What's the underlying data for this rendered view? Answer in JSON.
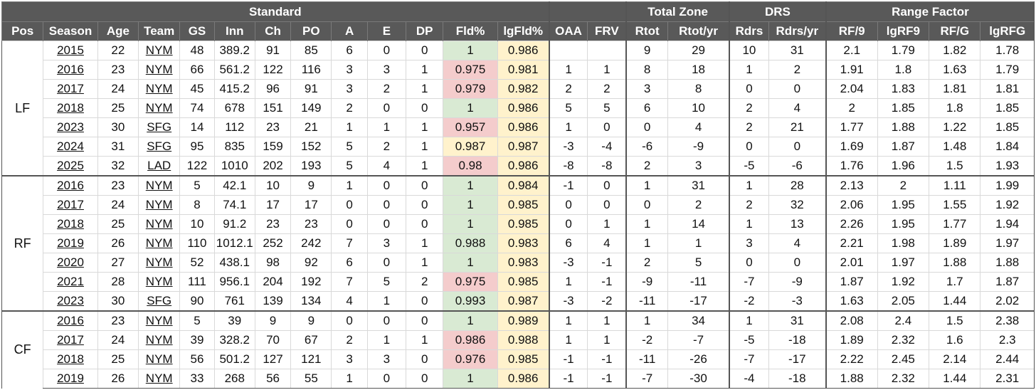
{
  "groups": {
    "standard": "Standard",
    "total_zone": "Total Zone",
    "drs": "DRS",
    "range_factor": "Range Factor"
  },
  "columns": [
    "Pos",
    "Season",
    "Age",
    "Team",
    "GS",
    "Inn",
    "Ch",
    "PO",
    "A",
    "E",
    "DP",
    "Fld%",
    "lgFld%",
    "OAA",
    "FRV",
    "Rtot",
    "Rtot/yr",
    "Rdrs",
    "Rdrs/yr",
    "RF/9",
    "lgRF9",
    "RF/G",
    "lgRFG"
  ],
  "colors": {
    "header_bg": "#595959",
    "good": "#d9ead3",
    "mid": "#fff2cc",
    "bad": "#f4cccc",
    "league": "#fff2cc"
  },
  "sections": [
    {
      "pos": "LF",
      "rows": [
        {
          "season": "2015",
          "age": "22",
          "team": "NYM",
          "gs": "48",
          "inn": "389.2",
          "ch": "91",
          "po": "85",
          "a": "6",
          "e": "0",
          "dp": "0",
          "fld": "1",
          "fld_color": "good",
          "lgfld": "0.986",
          "oaa": "",
          "frv": "",
          "rtot": "9",
          "rtot_yr": "29",
          "rdrs": "10",
          "rdrs_yr": "31",
          "rf9": "2.1",
          "lgrf9": "1.79",
          "rfg": "1.82",
          "lgrfg": "1.78"
        },
        {
          "season": "2016",
          "age": "23",
          "team": "NYM",
          "gs": "66",
          "inn": "561.2",
          "ch": "122",
          "po": "116",
          "a": "3",
          "e": "3",
          "dp": "1",
          "fld": "0.975",
          "fld_color": "bad",
          "lgfld": "0.981",
          "oaa": "1",
          "frv": "1",
          "rtot": "8",
          "rtot_yr": "18",
          "rdrs": "1",
          "rdrs_yr": "2",
          "rf9": "1.91",
          "lgrf9": "1.8",
          "rfg": "1.63",
          "lgrfg": "1.79"
        },
        {
          "season": "2017",
          "age": "24",
          "team": "NYM",
          "gs": "45",
          "inn": "415.2",
          "ch": "96",
          "po": "91",
          "a": "3",
          "e": "2",
          "dp": "1",
          "fld": "0.979",
          "fld_color": "bad",
          "lgfld": "0.982",
          "oaa": "2",
          "frv": "2",
          "rtot": "3",
          "rtot_yr": "8",
          "rdrs": "0",
          "rdrs_yr": "0",
          "rf9": "2.04",
          "lgrf9": "1.83",
          "rfg": "1.81",
          "lgrfg": "1.81"
        },
        {
          "season": "2018",
          "age": "25",
          "team": "NYM",
          "gs": "74",
          "inn": "678",
          "ch": "151",
          "po": "149",
          "a": "2",
          "e": "0",
          "dp": "0",
          "fld": "1",
          "fld_color": "good",
          "lgfld": "0.986",
          "oaa": "5",
          "frv": "5",
          "rtot": "6",
          "rtot_yr": "10",
          "rdrs": "2",
          "rdrs_yr": "4",
          "rf9": "2",
          "lgrf9": "1.85",
          "rfg": "1.8",
          "lgrfg": "1.85"
        },
        {
          "season": "2023",
          "age": "30",
          "team": "SFG",
          "gs": "14",
          "inn": "112",
          "ch": "23",
          "po": "21",
          "a": "1",
          "e": "1",
          "dp": "1",
          "fld": "0.957",
          "fld_color": "bad",
          "lgfld": "0.986",
          "oaa": "1",
          "frv": "0",
          "rtot": "0",
          "rtot_yr": "4",
          "rdrs": "2",
          "rdrs_yr": "21",
          "rf9": "1.77",
          "lgrf9": "1.88",
          "rfg": "1.22",
          "lgrfg": "1.85"
        },
        {
          "season": "2024",
          "age": "31",
          "team": "SFG",
          "gs": "95",
          "inn": "835",
          "ch": "159",
          "po": "152",
          "a": "5",
          "e": "2",
          "dp": "1",
          "fld": "0.987",
          "fld_color": "mid",
          "lgfld": "0.987",
          "oaa": "-3",
          "frv": "-4",
          "rtot": "-6",
          "rtot_yr": "-9",
          "rdrs": "0",
          "rdrs_yr": "0",
          "rf9": "1.69",
          "lgrf9": "1.87",
          "rfg": "1.48",
          "lgrfg": "1.84"
        },
        {
          "season": "2025",
          "age": "32",
          "team": "LAD",
          "gs": "122",
          "inn": "1010",
          "ch": "202",
          "po": "193",
          "a": "5",
          "e": "4",
          "dp": "1",
          "fld": "0.98",
          "fld_color": "bad",
          "lgfld": "0.986",
          "oaa": "-8",
          "frv": "-8",
          "rtot": "2",
          "rtot_yr": "3",
          "rdrs": "-5",
          "rdrs_yr": "-6",
          "rf9": "1.76",
          "lgrf9": "1.96",
          "rfg": "1.5",
          "lgrfg": "1.93"
        }
      ]
    },
    {
      "pos": "RF",
      "rows": [
        {
          "season": "2016",
          "age": "23",
          "team": "NYM",
          "gs": "5",
          "inn": "42.1",
          "ch": "10",
          "po": "9",
          "a": "1",
          "e": "0",
          "dp": "0",
          "fld": "1",
          "fld_color": "good",
          "lgfld": "0.984",
          "oaa": "-1",
          "frv": "0",
          "rtot": "1",
          "rtot_yr": "31",
          "rdrs": "1",
          "rdrs_yr": "28",
          "rf9": "2.13",
          "lgrf9": "2",
          "rfg": "1.11",
          "lgrfg": "1.99"
        },
        {
          "season": "2017",
          "age": "24",
          "team": "NYM",
          "gs": "8",
          "inn": "74.1",
          "ch": "17",
          "po": "17",
          "a": "0",
          "e": "0",
          "dp": "0",
          "fld": "1",
          "fld_color": "good",
          "lgfld": "0.985",
          "oaa": "0",
          "frv": "0",
          "rtot": "0",
          "rtot_yr": "2",
          "rdrs": "2",
          "rdrs_yr": "32",
          "rf9": "2.06",
          "lgrf9": "1.95",
          "rfg": "1.55",
          "lgrfg": "1.92"
        },
        {
          "season": "2018",
          "age": "25",
          "team": "NYM",
          "gs": "10",
          "inn": "91.2",
          "ch": "23",
          "po": "23",
          "a": "0",
          "e": "0",
          "dp": "0",
          "fld": "1",
          "fld_color": "good",
          "lgfld": "0.985",
          "oaa": "0",
          "frv": "1",
          "rtot": "1",
          "rtot_yr": "14",
          "rdrs": "1",
          "rdrs_yr": "13",
          "rf9": "2.26",
          "lgrf9": "1.95",
          "rfg": "1.77",
          "lgrfg": "1.94"
        },
        {
          "season": "2019",
          "age": "26",
          "team": "NYM",
          "gs": "110",
          "inn": "1012.1",
          "ch": "252",
          "po": "242",
          "a": "7",
          "e": "3",
          "dp": "1",
          "fld": "0.988",
          "fld_color": "good",
          "lgfld": "0.983",
          "oaa": "6",
          "frv": "4",
          "rtot": "1",
          "rtot_yr": "1",
          "rdrs": "3",
          "rdrs_yr": "4",
          "rf9": "2.21",
          "lgrf9": "1.98",
          "rfg": "1.89",
          "lgrfg": "1.97"
        },
        {
          "season": "2020",
          "age": "27",
          "team": "NYM",
          "gs": "52",
          "inn": "438.1",
          "ch": "98",
          "po": "92",
          "a": "6",
          "e": "0",
          "dp": "1",
          "fld": "1",
          "fld_color": "good",
          "lgfld": "0.983",
          "oaa": "-3",
          "frv": "-1",
          "rtot": "2",
          "rtot_yr": "5",
          "rdrs": "0",
          "rdrs_yr": "0",
          "rf9": "2.01",
          "lgrf9": "1.97",
          "rfg": "1.88",
          "lgrfg": "1.88"
        },
        {
          "season": "2021",
          "age": "28",
          "team": "NYM",
          "gs": "111",
          "inn": "956.1",
          "ch": "204",
          "po": "192",
          "a": "7",
          "e": "5",
          "dp": "2",
          "fld": "0.975",
          "fld_color": "bad",
          "lgfld": "0.985",
          "oaa": "1",
          "frv": "-1",
          "rtot": "-9",
          "rtot_yr": "-11",
          "rdrs": "-7",
          "rdrs_yr": "-9",
          "rf9": "1.87",
          "lgrf9": "1.92",
          "rfg": "1.7",
          "lgrfg": "1.87"
        },
        {
          "season": "2023",
          "age": "30",
          "team": "SFG",
          "gs": "90",
          "inn": "761",
          "ch": "139",
          "po": "134",
          "a": "4",
          "e": "1",
          "dp": "0",
          "fld": "0.993",
          "fld_color": "good",
          "lgfld": "0.987",
          "oaa": "-3",
          "frv": "-2",
          "rtot": "-11",
          "rtot_yr": "-17",
          "rdrs": "-2",
          "rdrs_yr": "-3",
          "rf9": "1.63",
          "lgrf9": "2.05",
          "rfg": "1.44",
          "lgrfg": "2.02"
        }
      ]
    },
    {
      "pos": "CF",
      "rows": [
        {
          "season": "2016",
          "age": "23",
          "team": "NYM",
          "gs": "5",
          "inn": "39",
          "ch": "9",
          "po": "9",
          "a": "0",
          "e": "0",
          "dp": "0",
          "fld": "1",
          "fld_color": "good",
          "lgfld": "0.989",
          "oaa": "1",
          "frv": "1",
          "rtot": "1",
          "rtot_yr": "34",
          "rdrs": "1",
          "rdrs_yr": "31",
          "rf9": "2.08",
          "lgrf9": "2.4",
          "rfg": "1.5",
          "lgrfg": "2.38"
        },
        {
          "season": "2017",
          "age": "24",
          "team": "NYM",
          "gs": "39",
          "inn": "328.2",
          "ch": "70",
          "po": "67",
          "a": "2",
          "e": "1",
          "dp": "1",
          "fld": "0.986",
          "fld_color": "bad",
          "lgfld": "0.988",
          "oaa": "1",
          "frv": "1",
          "rtot": "-2",
          "rtot_yr": "-7",
          "rdrs": "-5",
          "rdrs_yr": "-18",
          "rf9": "1.89",
          "lgrf9": "2.32",
          "rfg": "1.6",
          "lgrfg": "2.3"
        },
        {
          "season": "2018",
          "age": "25",
          "team": "NYM",
          "gs": "56",
          "inn": "501.2",
          "ch": "127",
          "po": "121",
          "a": "3",
          "e": "3",
          "dp": "0",
          "fld": "0.976",
          "fld_color": "bad",
          "lgfld": "0.985",
          "oaa": "-1",
          "frv": "-1",
          "rtot": "-11",
          "rtot_yr": "-26",
          "rdrs": "-7",
          "rdrs_yr": "-17",
          "rf9": "2.22",
          "lgrf9": "2.45",
          "rfg": "2.14",
          "lgrfg": "2.44"
        },
        {
          "season": "2019",
          "age": "26",
          "team": "NYM",
          "gs": "33",
          "inn": "268",
          "ch": "56",
          "po": "55",
          "a": "1",
          "e": "0",
          "dp": "0",
          "fld": "1",
          "fld_color": "good",
          "lgfld": "0.986",
          "oaa": "-1",
          "frv": "-1",
          "rtot": "-7",
          "rtot_yr": "-30",
          "rdrs": "-4",
          "rdrs_yr": "-18",
          "rf9": "1.88",
          "lgrf9": "2.32",
          "rfg": "1.44",
          "lgrfg": "2.31"
        }
      ]
    }
  ]
}
